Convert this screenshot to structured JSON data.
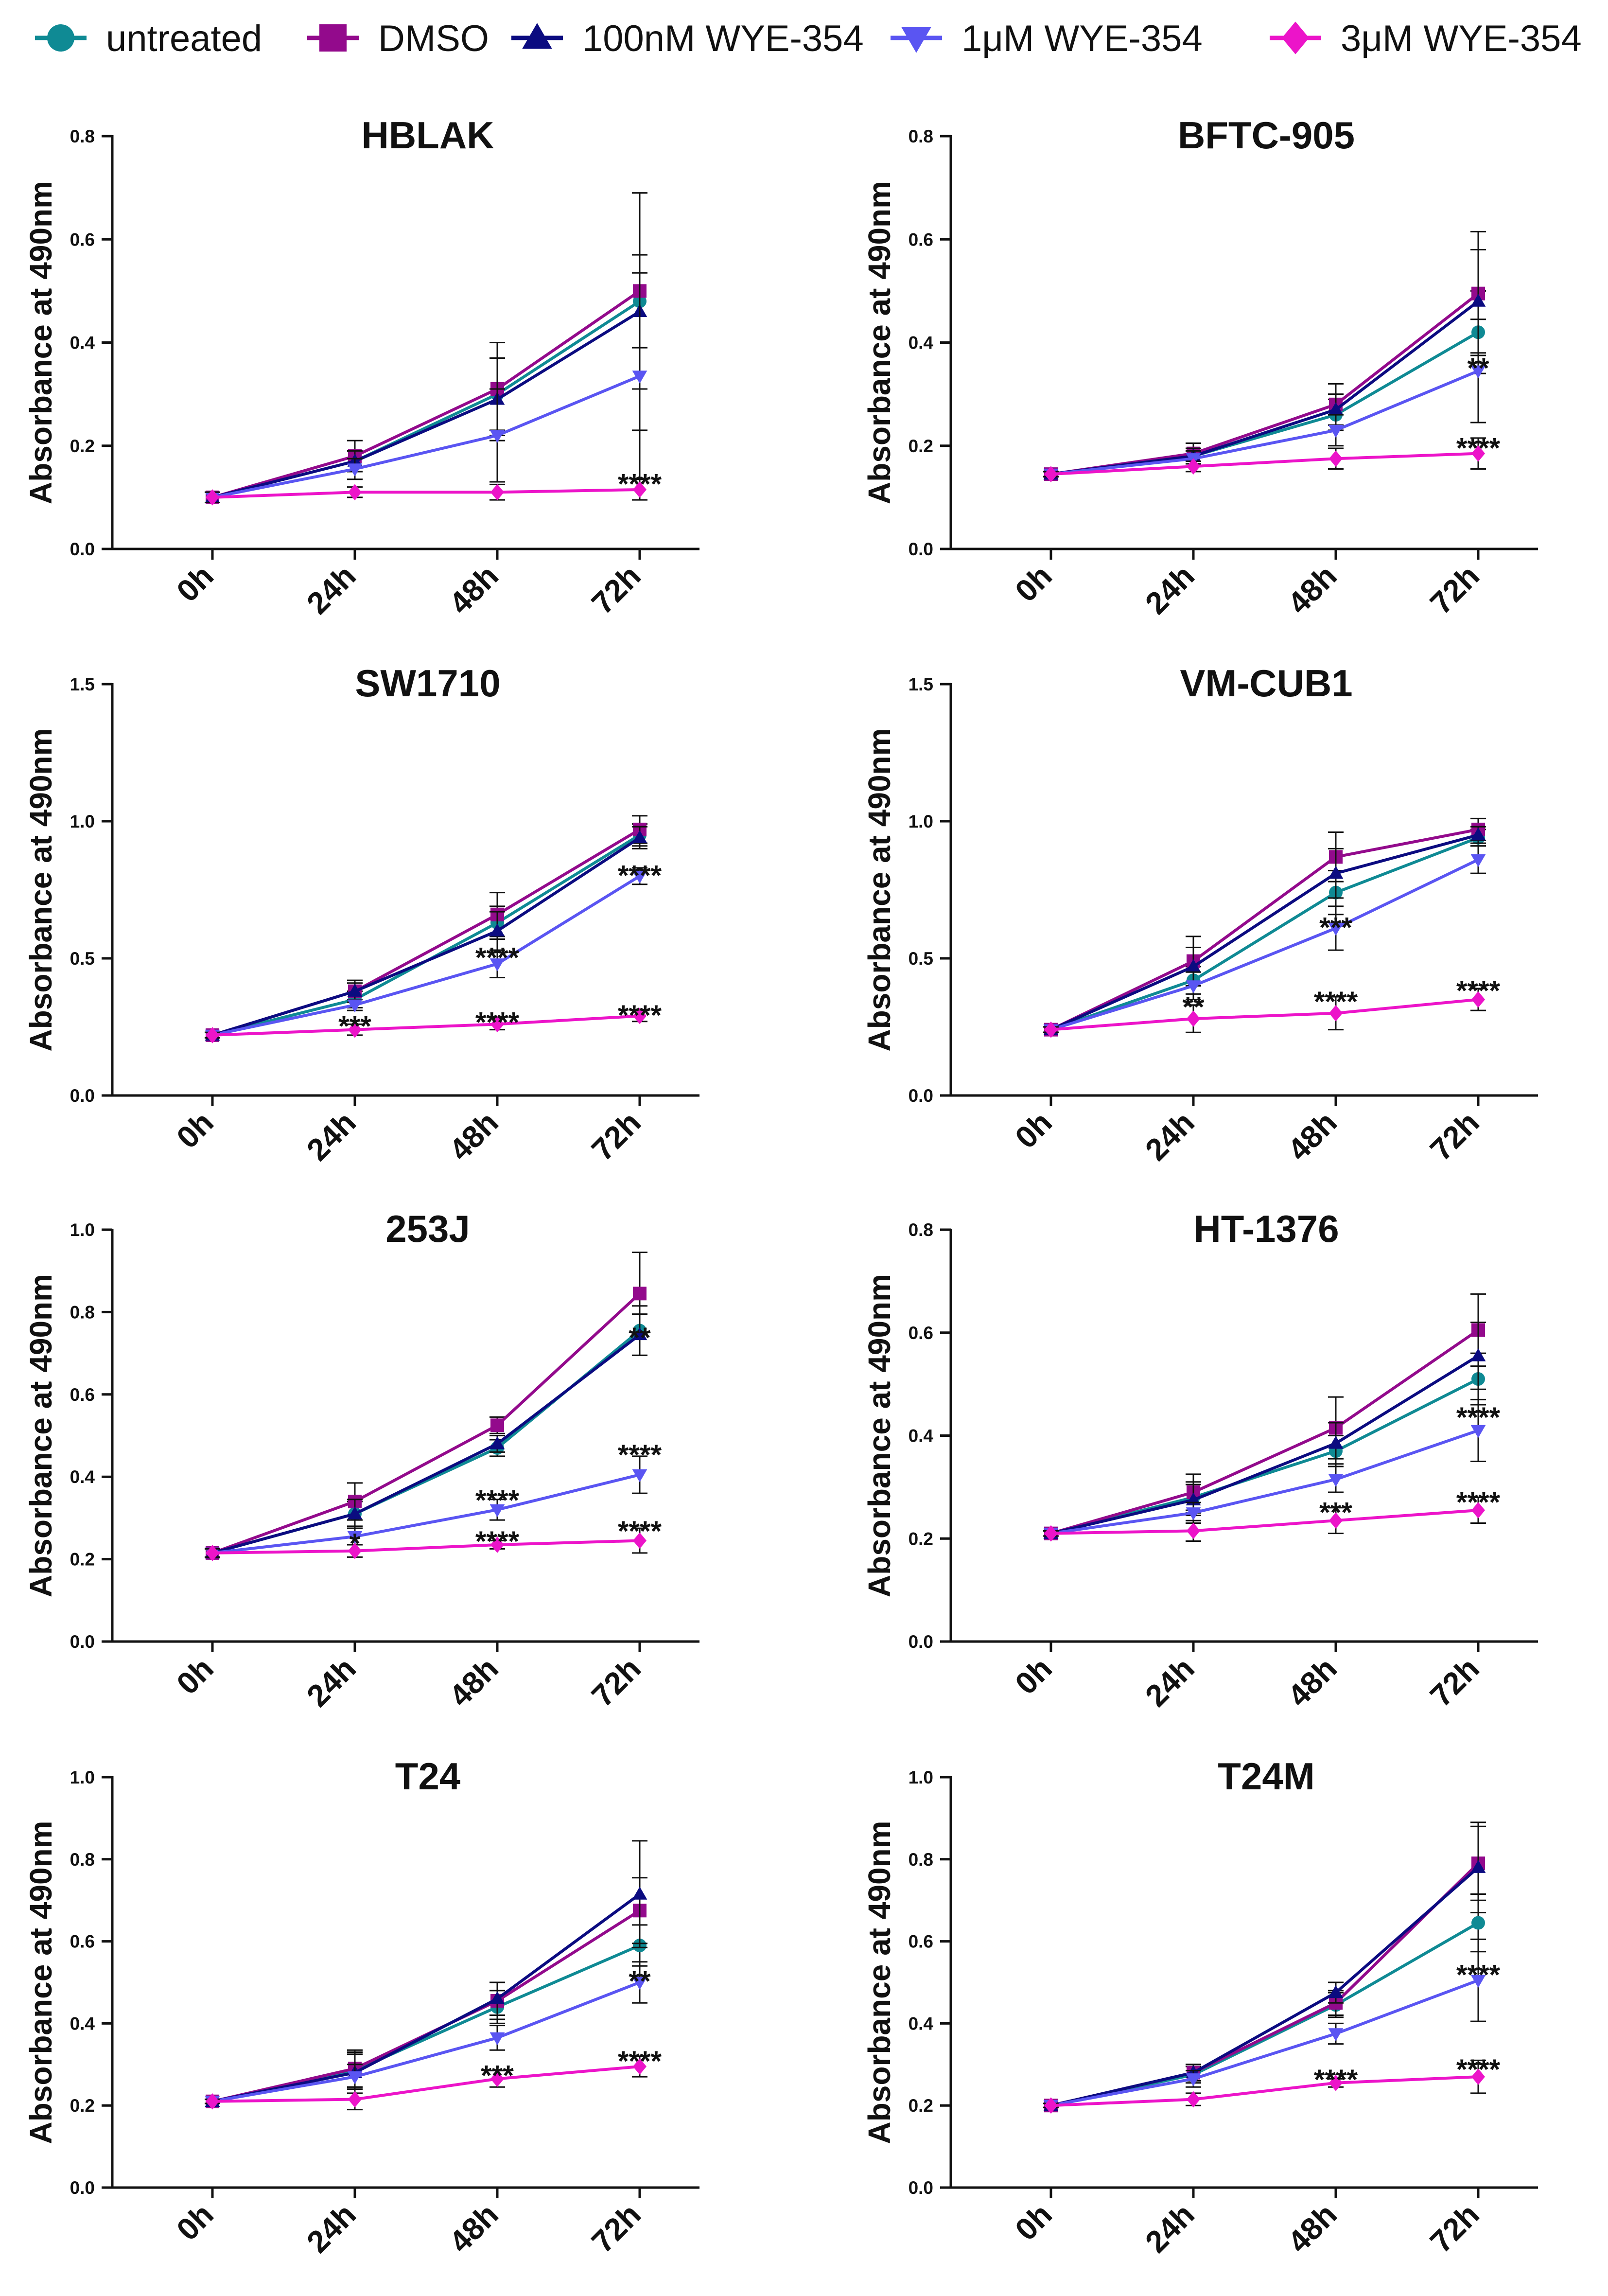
{
  "legend": {
    "entries": [
      {
        "label": "untreated",
        "color": "#0F8A94",
        "marker": "circle"
      },
      {
        "label": "DMSO",
        "color": "#930A8C",
        "marker": "square"
      },
      {
        "label": "100nM WYE-354",
        "color": "#0B0B80",
        "marker": "triangle-up"
      },
      {
        "label": "1μM WYE-354",
        "color": "#5A55F2",
        "marker": "triangle-down"
      },
      {
        "label": "3μM WYE-354",
        "color": "#EC14C9",
        "marker": "diamond"
      }
    ]
  },
  "chart_data": [
    {
      "type": "line",
      "title": "HBLAK",
      "ylabel": "Absorbance at 490nm",
      "xlabel": "",
      "categories": [
        "0h",
        "24h",
        "48h",
        "72h"
      ],
      "ylim": [
        0,
        0.8
      ],
      "yticks": [
        "0.0",
        "0.2",
        "0.4",
        "0.6",
        "0.8"
      ],
      "series": [
        {
          "name": "untreated",
          "values": [
            0.1,
            0.17,
            0.3,
            0.48
          ],
          "err": [
            0.01,
            0.02,
            0.07,
            0.09
          ]
        },
        {
          "name": "DMSO",
          "values": [
            0.1,
            0.18,
            0.31,
            0.5
          ],
          "err": [
            0.01,
            0.03,
            0.09,
            0.19
          ]
        },
        {
          "name": "100nM WYE-354",
          "values": [
            0.1,
            0.17,
            0.29,
            0.46
          ],
          "err": [
            0.01,
            0.02,
            0.08,
            0.23
          ]
        },
        {
          "name": "1μM WYE-354",
          "values": [
            0.1,
            0.155,
            0.22,
            0.335
          ],
          "err": [
            0.01,
            0.02,
            0.09,
            0.2
          ]
        },
        {
          "name": "3μM WYE-354",
          "values": [
            0.1,
            0.11,
            0.11,
            0.115
          ],
          "err": [
            0.01,
            0.01,
            0.015,
            0.02
          ]
        }
      ],
      "annotations": [
        {
          "text": "****",
          "category": "72h",
          "y": 0.135
        }
      ]
    },
    {
      "type": "line",
      "title": "BFTC-905",
      "ylabel": "Absorbance at 490nm",
      "xlabel": "",
      "categories": [
        "0h",
        "24h",
        "48h",
        "72h"
      ],
      "ylim": [
        0,
        0.8
      ],
      "yticks": [
        "0.0",
        "0.2",
        "0.4",
        "0.6",
        "0.8"
      ],
      "series": [
        {
          "name": "untreated",
          "values": [
            0.145,
            0.18,
            0.26,
            0.42
          ],
          "err": [
            0.005,
            0.01,
            0.03,
            0.08
          ]
        },
        {
          "name": "DMSO",
          "values": [
            0.145,
            0.185,
            0.28,
            0.495
          ],
          "err": [
            0.005,
            0.02,
            0.04,
            0.12
          ]
        },
        {
          "name": "100nM WYE-354",
          "values": [
            0.145,
            0.18,
            0.27,
            0.48
          ],
          "err": [
            0.005,
            0.015,
            0.03,
            0.1
          ]
        },
        {
          "name": "1μM WYE-354",
          "values": [
            0.145,
            0.175,
            0.23,
            0.345
          ],
          "err": [
            0.005,
            0.015,
            0.03,
            0.1
          ]
        },
        {
          "name": "3μM WYE-354",
          "values": [
            0.145,
            0.16,
            0.175,
            0.185
          ],
          "err": [
            0.005,
            0.01,
            0.02,
            0.03
          ]
        }
      ],
      "annotations": [
        {
          "text": "**",
          "category": "72h",
          "y": 0.36
        },
        {
          "text": "****",
          "category": "72h",
          "y": 0.205
        }
      ]
    },
    {
      "type": "line",
      "title": "SW1710",
      "ylabel": "Absorbance at 490nm",
      "xlabel": "",
      "categories": [
        "0h",
        "24h",
        "48h",
        "72h"
      ],
      "ylim": [
        0,
        1.5
      ],
      "yticks": [
        "0.0",
        "0.5",
        "1.0",
        "1.5"
      ],
      "series": [
        {
          "name": "untreated",
          "values": [
            0.22,
            0.35,
            0.63,
            0.95
          ],
          "err": [
            0.01,
            0.03,
            0.06,
            0.04
          ]
        },
        {
          "name": "DMSO",
          "values": [
            0.22,
            0.38,
            0.66,
            0.97
          ],
          "err": [
            0.01,
            0.04,
            0.08,
            0.05
          ]
        },
        {
          "name": "100nM WYE-354",
          "values": [
            0.22,
            0.38,
            0.6,
            0.94
          ],
          "err": [
            0.01,
            0.03,
            0.07,
            0.04
          ]
        },
        {
          "name": "1μM WYE-354",
          "values": [
            0.22,
            0.33,
            0.48,
            0.8
          ],
          "err": [
            0.01,
            0.02,
            0.05,
            0.03
          ]
        },
        {
          "name": "3μM WYE-354",
          "values": [
            0.22,
            0.24,
            0.26,
            0.29
          ],
          "err": [
            0.01,
            0.02,
            0.02,
            0.02
          ]
        }
      ],
      "annotations": [
        {
          "text": "***",
          "category": "24h",
          "y": 0.27
        },
        {
          "text": "****",
          "category": "48h",
          "y": 0.52
        },
        {
          "text": "****",
          "category": "48h",
          "y": 0.285
        },
        {
          "text": "****",
          "category": "72h",
          "y": 0.82
        },
        {
          "text": "****",
          "category": "72h",
          "y": 0.31
        }
      ]
    },
    {
      "type": "line",
      "title": "VM-CUB1",
      "ylabel": "Absorbance at 490nm",
      "xlabel": "",
      "categories": [
        "0h",
        "24h",
        "48h",
        "72h"
      ],
      "ylim": [
        0,
        1.5
      ],
      "yticks": [
        "0.0",
        "0.5",
        "1.0",
        "1.5"
      ],
      "series": [
        {
          "name": "untreated",
          "values": [
            0.24,
            0.42,
            0.74,
            0.94
          ],
          "err": [
            0.01,
            0.05,
            0.08,
            0.03
          ]
        },
        {
          "name": "DMSO",
          "values": [
            0.24,
            0.49,
            0.87,
            0.97
          ],
          "err": [
            0.01,
            0.09,
            0.09,
            0.04
          ]
        },
        {
          "name": "100nM WYE-354",
          "values": [
            0.24,
            0.47,
            0.81,
            0.95
          ],
          "err": [
            0.01,
            0.07,
            0.09,
            0.03
          ]
        },
        {
          "name": "1μM WYE-354",
          "values": [
            0.24,
            0.4,
            0.61,
            0.86
          ],
          "err": [
            0.01,
            0.05,
            0.08,
            0.05
          ]
        },
        {
          "name": "3μM WYE-354",
          "values": [
            0.24,
            0.28,
            0.3,
            0.35
          ],
          "err": [
            0.01,
            0.05,
            0.06,
            0.04
          ]
        }
      ],
      "annotations": [
        {
          "text": "**",
          "category": "24h",
          "y": 0.34
        },
        {
          "text": "***",
          "category": "48h",
          "y": 0.63
        },
        {
          "text": "****",
          "category": "48h",
          "y": 0.36
        },
        {
          "text": "****",
          "category": "72h",
          "y": 0.4
        }
      ]
    },
    {
      "type": "line",
      "title": "253J",
      "ylabel": "Absorbance at 490nm",
      "xlabel": "",
      "categories": [
        "0h",
        "24h",
        "48h",
        "72h"
      ],
      "ylim": [
        0,
        1.0
      ],
      "yticks": [
        "0.0",
        "0.2",
        "0.4",
        "0.6",
        "0.8",
        "1.0"
      ],
      "series": [
        {
          "name": "untreated",
          "values": [
            0.215,
            0.31,
            0.47,
            0.755
          ],
          "err": [
            0.01,
            0.03,
            0.02,
            0.06
          ]
        },
        {
          "name": "DMSO",
          "values": [
            0.215,
            0.34,
            0.525,
            0.845
          ],
          "err": [
            0.01,
            0.045,
            0.02,
            0.1
          ]
        },
        {
          "name": "100nM WYE-354",
          "values": [
            0.215,
            0.31,
            0.48,
            0.745
          ],
          "err": [
            0.01,
            0.035,
            0.02,
            0.05
          ]
        },
        {
          "name": "1μM WYE-354",
          "values": [
            0.215,
            0.255,
            0.32,
            0.405
          ],
          "err": [
            0.01,
            0.02,
            0.025,
            0.045
          ]
        },
        {
          "name": "3μM WYE-354",
          "values": [
            0.215,
            0.22,
            0.235,
            0.245
          ],
          "err": [
            0.01,
            0.015,
            0.01,
            0.03
          ]
        }
      ],
      "annotations": [
        {
          "text": "*",
          "category": "24h",
          "y": 0.25
        },
        {
          "text": "****",
          "category": "48h",
          "y": 0.355
        },
        {
          "text": "****",
          "category": "48h",
          "y": 0.255
        },
        {
          "text": "**",
          "category": "72h",
          "y": 0.75
        },
        {
          "text": "****",
          "category": "72h",
          "y": 0.465
        },
        {
          "text": "****",
          "category": "72h",
          "y": 0.28
        }
      ]
    },
    {
      "type": "line",
      "title": "HT-1376",
      "ylabel": "Absorbance at 490nm",
      "xlabel": "",
      "categories": [
        "0h",
        "24h",
        "48h",
        "72h"
      ],
      "ylim": [
        0,
        0.8
      ],
      "yticks": [
        "0.0",
        "0.2",
        "0.4",
        "0.6",
        "0.8"
      ],
      "series": [
        {
          "name": "untreated",
          "values": [
            0.21,
            0.28,
            0.37,
            0.51
          ],
          "err": [
            0.005,
            0.03,
            0.03,
            0.05
          ]
        },
        {
          "name": "DMSO",
          "values": [
            0.21,
            0.29,
            0.415,
            0.605
          ],
          "err": [
            0.005,
            0.035,
            0.06,
            0.07
          ]
        },
        {
          "name": "100nM WYE-354",
          "values": [
            0.21,
            0.275,
            0.385,
            0.555
          ],
          "err": [
            0.005,
            0.03,
            0.04,
            0.065
          ]
        },
        {
          "name": "1μM WYE-354",
          "values": [
            0.21,
            0.25,
            0.315,
            0.41
          ],
          "err": [
            0.005,
            0.02,
            0.025,
            0.06
          ]
        },
        {
          "name": "3μM WYE-354",
          "values": [
            0.21,
            0.215,
            0.235,
            0.255
          ],
          "err": [
            0.005,
            0.02,
            0.025,
            0.025
          ]
        }
      ],
      "annotations": [
        {
          "text": "***",
          "category": "48h",
          "y": 0.26
        },
        {
          "text": "****",
          "category": "72h",
          "y": 0.445
        },
        {
          "text": "****",
          "category": "72h",
          "y": 0.28
        }
      ]
    },
    {
      "type": "line",
      "title": "T24",
      "ylabel": "Absorbance at 490nm",
      "xlabel": "",
      "categories": [
        "0h",
        "24h",
        "48h",
        "72h"
      ],
      "ylim": [
        0,
        1.0
      ],
      "yticks": [
        "0.0",
        "0.2",
        "0.4",
        "0.6",
        "0.8",
        "1.0"
      ],
      "series": [
        {
          "name": "untreated",
          "values": [
            0.21,
            0.285,
            0.44,
            0.59
          ],
          "err": [
            0.005,
            0.04,
            0.04,
            0.05
          ]
        },
        {
          "name": "DMSO",
          "values": [
            0.21,
            0.29,
            0.455,
            0.675
          ],
          "err": [
            0.005,
            0.045,
            0.045,
            0.08
          ]
        },
        {
          "name": "100nM WYE-354",
          "values": [
            0.21,
            0.28,
            0.46,
            0.715
          ],
          "err": [
            0.005,
            0.05,
            0.04,
            0.13
          ]
        },
        {
          "name": "1μM WYE-354",
          "values": [
            0.21,
            0.27,
            0.365,
            0.5
          ],
          "err": [
            0.005,
            0.03,
            0.03,
            0.05
          ]
        },
        {
          "name": "3μM WYE-354",
          "values": [
            0.21,
            0.215,
            0.265,
            0.295
          ],
          "err": [
            0.005,
            0.025,
            0.02,
            0.025
          ]
        }
      ],
      "annotations": [
        {
          "text": "***",
          "category": "48h",
          "y": 0.285
        },
        {
          "text": "**",
          "category": "72h",
          "y": 0.515
        },
        {
          "text": "****",
          "category": "72h",
          "y": 0.32
        }
      ]
    },
    {
      "type": "line",
      "title": "T24M",
      "ylabel": "Absorbance at 490nm",
      "xlabel": "",
      "categories": [
        "0h",
        "24h",
        "48h",
        "72h"
      ],
      "ylim": [
        0,
        1.0
      ],
      "yticks": [
        "0.0",
        "0.2",
        "0.4",
        "0.6",
        "0.8",
        "1.0"
      ],
      "series": [
        {
          "name": "untreated",
          "values": [
            0.2,
            0.275,
            0.445,
            0.645
          ],
          "err": [
            0.005,
            0.02,
            0.03,
            0.07
          ]
        },
        {
          "name": "DMSO",
          "values": [
            0.2,
            0.28,
            0.45,
            0.79
          ],
          "err": [
            0.005,
            0.02,
            0.03,
            0.09
          ]
        },
        {
          "name": "100nM WYE-354",
          "values": [
            0.2,
            0.28,
            0.475,
            0.78
          ],
          "err": [
            0.005,
            0.02,
            0.025,
            0.11
          ]
        },
        {
          "name": "1μM WYE-354",
          "values": [
            0.2,
            0.265,
            0.375,
            0.505
          ],
          "err": [
            0.005,
            0.02,
            0.025,
            0.1
          ]
        },
        {
          "name": "3μM WYE-354",
          "values": [
            0.2,
            0.215,
            0.255,
            0.27
          ],
          "err": [
            0.005,
            0.015,
            0.01,
            0.04
          ]
        }
      ],
      "annotations": [
        {
          "text": "****",
          "category": "48h",
          "y": 0.275
        },
        {
          "text": "****",
          "category": "72h",
          "y": 0.53
        },
        {
          "text": "****",
          "category": "72h",
          "y": 0.3
        }
      ]
    }
  ]
}
